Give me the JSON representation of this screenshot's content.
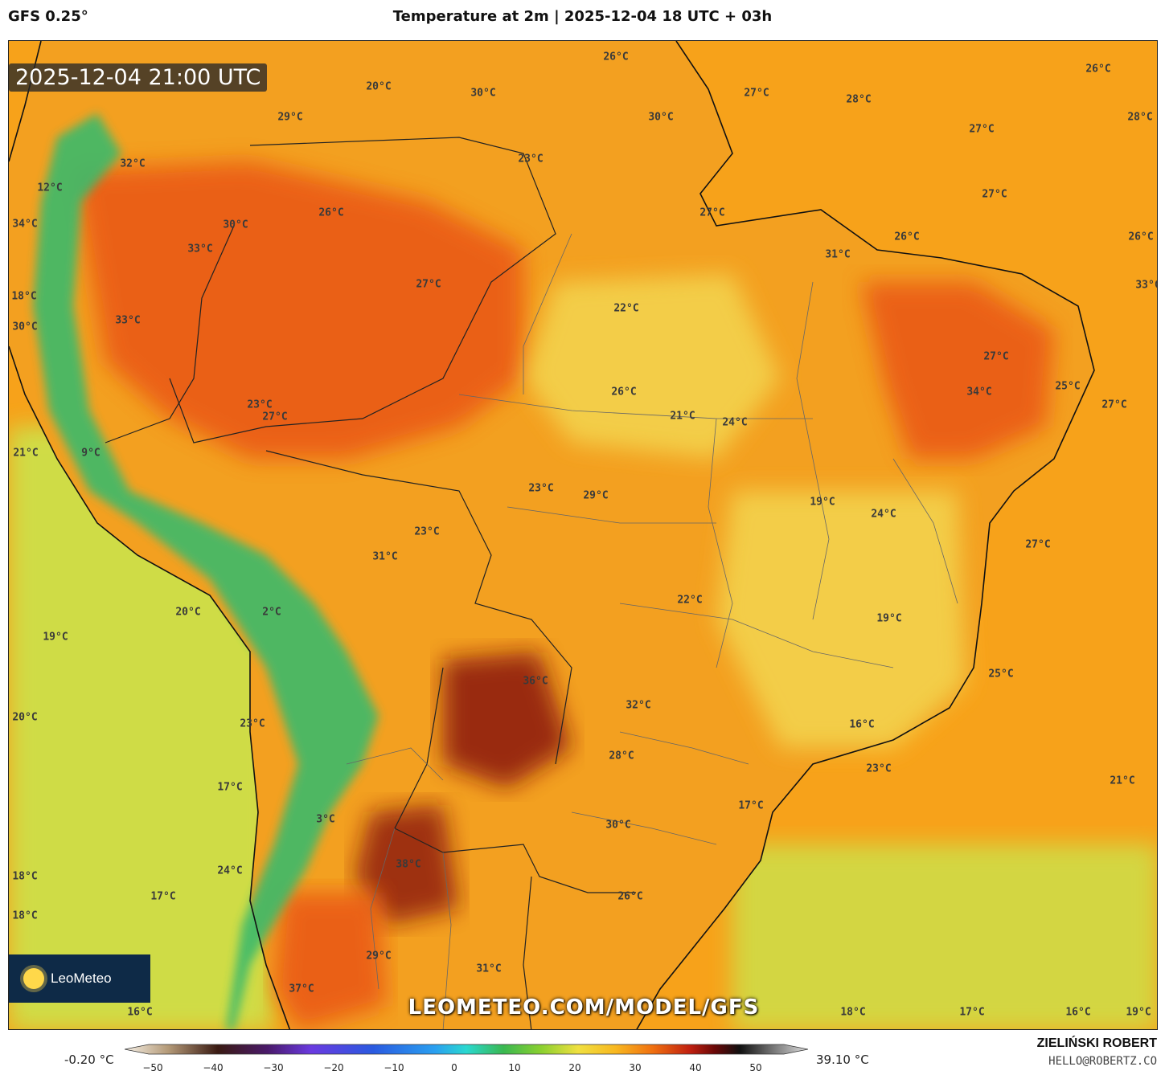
{
  "header": {
    "model": "GFS 0.25°",
    "title": "Temperature at 2m | 2025-12-04 18 UTC + 03h"
  },
  "map": {
    "valid_time": "2025-12-04 21:00 UTC",
    "watermark_url": "LEOMETEO.COM/MODEL/GFS",
    "logo_text": "LeoMeteo",
    "temperature_labels": [
      "26°C",
      "26°C",
      "27°C",
      "28°C",
      "28°C",
      "27°C",
      "20°C",
      "30°C",
      "30°C",
      "29°C",
      "23°C",
      "32°C",
      "12°C",
      "34°C",
      "26°C",
      "30°C",
      "33°C",
      "27°C",
      "26°C",
      "26°C",
      "33°C",
      "31°C",
      "27°C",
      "18°C",
      "30°C",
      "33°C",
      "22°C",
      "27°C",
      "26°C",
      "34°C",
      "25°C",
      "27°C",
      "23°C",
      "27°C",
      "21°C",
      "24°C",
      "21°C",
      "27°C",
      "9°C",
      "23°C",
      "29°C",
      "19°C",
      "24°C",
      "23°C",
      "27°C",
      "31°C",
      "22°C",
      "20°C",
      "2°C",
      "19°C",
      "19°C",
      "36°C",
      "25°C",
      "20°C",
      "32°C",
      "16°C",
      "23°C",
      "28°C",
      "23°C",
      "21°C",
      "17°C",
      "3°C",
      "17°C",
      "30°C",
      "38°C",
      "18°C",
      "24°C",
      "17°C",
      "26°C",
      "18°C",
      "29°C",
      "31°C",
      "37°C",
      "16°C",
      "18°C",
      "17°C",
      "16°C",
      "19°C"
    ]
  },
  "colorbar": {
    "min_label": "-0.20 °C",
    "max_label": "39.10 °C",
    "ticks": [
      "−50",
      "−40",
      "−30",
      "−20",
      "−10",
      "0",
      "10",
      "20",
      "30",
      "40",
      "50"
    ],
    "range": [
      -55,
      55
    ],
    "stops": [
      {
        "v": -55,
        "c": "#f6f0e6"
      },
      {
        "v": -48,
        "c": "#b49a78"
      },
      {
        "v": -40,
        "c": "#3a1a12"
      },
      {
        "v": -32,
        "c": "#4a1a6a"
      },
      {
        "v": -25,
        "c": "#6a3ae0"
      },
      {
        "v": -15,
        "c": "#2a5ae0"
      },
      {
        "v": -5,
        "c": "#2aa0f0"
      },
      {
        "v": 0,
        "c": "#2ad8d0"
      },
      {
        "v": 6,
        "c": "#3ab850"
      },
      {
        "v": 12,
        "c": "#8ad030"
      },
      {
        "v": 18,
        "c": "#f0e040"
      },
      {
        "v": 24,
        "c": "#f8b820"
      },
      {
        "v": 30,
        "c": "#f07010"
      },
      {
        "v": 36,
        "c": "#c02010"
      },
      {
        "v": 40,
        "c": "#6a0808"
      },
      {
        "v": 44,
        "c": "#101010"
      },
      {
        "v": 55,
        "c": "#e0e0e0"
      }
    ]
  },
  "credits": {
    "author": "ZIELIŃSKI ROBERT",
    "email": "HELLO@ROBERTZ.CO"
  },
  "colors": {
    "ocean_atlantic": "#f7a21a",
    "ocean_pacific": "#cde04a",
    "land_hot": "#ea5a12",
    "land_warm": "#f3a020",
    "land_mild": "#f3d550",
    "andes": "#3cba6a",
    "extreme_heat": "#8a1508"
  }
}
